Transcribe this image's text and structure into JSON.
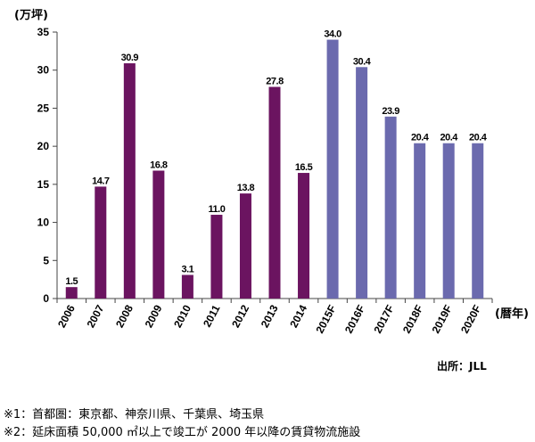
{
  "chart_data": {
    "type": "bar",
    "y_unit_label": "(万坪)",
    "x_unit_label": "(暦年)",
    "ylim": [
      0,
      35
    ],
    "y_ticks": [
      0,
      5,
      10,
      15,
      20,
      25,
      30,
      35
    ],
    "grid": false,
    "categories": [
      "2006",
      "2007",
      "2008",
      "2009",
      "2010",
      "2011",
      "2012",
      "2013",
      "2014",
      "2015F",
      "2016F",
      "2017F",
      "2018F",
      "2019F",
      "2020F"
    ],
    "values": [
      1.5,
      14.7,
      30.9,
      16.8,
      3.1,
      11.0,
      13.8,
      27.8,
      16.5,
      34.0,
      30.4,
      23.9,
      20.4,
      20.4,
      20.4
    ],
    "value_labels": [
      "1.5",
      "14.7",
      "30.9",
      "16.8",
      "3.1",
      "11.0",
      "13.8",
      "27.8",
      "16.5",
      "34.0",
      "30.4",
      "23.9",
      "20.4",
      "20.4",
      "20.4"
    ],
    "colors": {
      "actual": "#6b1460",
      "forecast": "#6b6aae"
    }
  },
  "source": "出所：JLL",
  "notes": [
    "※1：首都圏：東京都、神奈川県、千葉県、埼玉県",
    "※2：延床面積 50,000 ㎡以上で竣工が 2000 年以降の賃貸物流施設"
  ]
}
